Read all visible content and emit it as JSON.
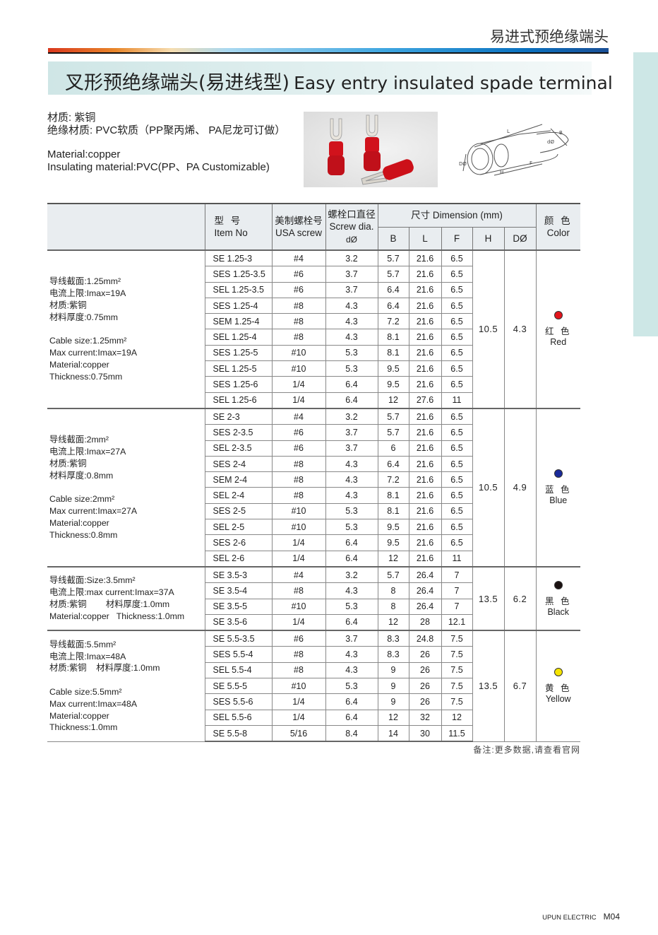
{
  "header": {
    "section_title": "易进式预绝缘端头",
    "title_cn": "叉形预绝缘端头(易进线型)",
    "title_en": "Easy entry insulated spade terminal"
  },
  "intro": {
    "cn_line1": "材质: 紫铜",
    "cn_line2": "绝缘材质: PVC软质（PP聚丙烯、 PA尼龙可订做）",
    "en_line1": "Material:copper",
    "en_line2": "Insulating material:PVC(PP、PA Customizable)"
  },
  "diagram_labels": [
    "L",
    "B",
    "F",
    "dØ",
    "DØ",
    "H"
  ],
  "table": {
    "headers": {
      "item_cn": "型  号",
      "item_en": "Item No",
      "usa_cn": "美制螺栓号",
      "usa_en": "USA screw",
      "dia_cn": "螺栓口直径",
      "dia_en": "Screw dia.",
      "dia_sym": "dØ",
      "dimension": "尺寸 Dimension   (mm)",
      "B": "B",
      "L": "L",
      "F": "F",
      "H": "H",
      "D": "DØ",
      "color_cn": "颜 色",
      "color_en": "Color"
    },
    "groups": [
      {
        "desc": [
          "导线截面:1.25mm²",
          "电流上限:Imax=19A",
          "材质:紫铜",
          "材料厚度:0.75mm",
          "",
          "Cable size:1.25mm²",
          "Max current:Imax=19A",
          "Material:copper",
          "Thickness:0.75mm"
        ],
        "H": "10.5",
        "D": "4.3",
        "color_cn": "红 色",
        "color_en": "Red",
        "color_hex": "#e3141c",
        "rows": [
          [
            "SE 1.25-3",
            "#4",
            "3.2",
            "5.7",
            "21.6",
            "6.5"
          ],
          [
            "SES 1.25-3.5",
            "#6",
            "3.7",
            "5.7",
            "21.6",
            "6.5"
          ],
          [
            "SEL 1.25-3.5",
            "#6",
            "3.7",
            "6.4",
            "21.6",
            "6.5"
          ],
          [
            "SES 1.25-4",
            "#8",
            "4.3",
            "6.4",
            "21.6",
            "6.5"
          ],
          [
            "SEM 1.25-4",
            "#8",
            "4.3",
            "7.2",
            "21.6",
            "6.5"
          ],
          [
            "SEL 1.25-4",
            "#8",
            "4.3",
            "8.1",
            "21.6",
            "6.5"
          ],
          [
            "SES 1.25-5",
            "#10",
            "5.3",
            "8.1",
            "21.6",
            "6.5"
          ],
          [
            "SEL 1.25-5",
            "#10",
            "5.3",
            "9.5",
            "21.6",
            "6.5"
          ],
          [
            "SES 1.25-6",
            "1/4",
            "6.4",
            "9.5",
            "21.6",
            "6.5"
          ],
          [
            "SEL 1.25-6",
            "1/4",
            "6.4",
            "12",
            "27.6",
            "11"
          ]
        ]
      },
      {
        "desc": [
          "导线截面:2mm²",
          "电流上限:Imax=27A",
          "材质:紫铜",
          "材料厚度:0.8mm",
          "",
          "Cable size:2mm²",
          "Max current:Imax=27A",
          "Material:copper",
          "Thickness:0.8mm"
        ],
        "H": "10.5",
        "D": "4.9",
        "color_cn": "蓝 色",
        "color_en": "Blue",
        "color_hex": "#1a2a9a",
        "rows": [
          [
            "SE 2-3",
            "#4",
            "3.2",
            "5.7",
            "21.6",
            "6.5"
          ],
          [
            "SES 2-3.5",
            "#6",
            "3.7",
            "5.7",
            "21.6",
            "6.5"
          ],
          [
            "SEL 2-3.5",
            "#6",
            "3.7",
            "6",
            "21.6",
            "6.5"
          ],
          [
            "SES 2-4",
            "#8",
            "4.3",
            "6.4",
            "21.6",
            "6.5"
          ],
          [
            "SEM 2-4",
            "#8",
            "4.3",
            "7.2",
            "21.6",
            "6.5"
          ],
          [
            "SEL 2-4",
            "#8",
            "4.3",
            "8.1",
            "21.6",
            "6.5"
          ],
          [
            "SES 2-5",
            "#10",
            "5.3",
            "8.1",
            "21.6",
            "6.5"
          ],
          [
            "SEL 2-5",
            "#10",
            "5.3",
            "9.5",
            "21.6",
            "6.5"
          ],
          [
            "SES 2-6",
            "1/4",
            "6.4",
            "9.5",
            "21.6",
            "6.5"
          ],
          [
            "SEL 2-6",
            "1/4",
            "6.4",
            "12",
            "21.6",
            "11"
          ]
        ]
      },
      {
        "desc": [
          "导线截面:Size:3.5mm²",
          "电流上限:max current:Imax=37A",
          "材质:紫铜        材料厚度:1.0mm",
          "Material:copper   Thickness:1.0mm"
        ],
        "H": "13.5",
        "D": "6.2",
        "color_cn": "黑 色",
        "color_en": "Black",
        "color_hex": "#1a1010",
        "rows": [
          [
            "SE 3.5-3",
            "#4",
            "3.2",
            "5.7",
            "26.4",
            "7"
          ],
          [
            "SE 3.5-4",
            "#8",
            "4.3",
            "8",
            "26.4",
            "7"
          ],
          [
            "SE 3.5-5",
            "#10",
            "5.3",
            "8",
            "26.4",
            "7"
          ],
          [
            "SE 3.5-6",
            "1/4",
            "6.4",
            "12",
            "28",
            "12.1"
          ]
        ]
      },
      {
        "desc": [
          "导线截面:5.5mm²",
          "电流上限:Imax=48A",
          "材质:紫铜    材料厚度:1.0mm",
          "",
          "Cable size:5.5mm²",
          "Max current:Imax=48A",
          "Material:copper",
          "Thickness:1.0mm"
        ],
        "H": "13.5",
        "D": "6.7",
        "color_cn": "黄 色",
        "color_en": "Yellow",
        "color_hex": "#f5e400",
        "rows": [
          [
            "SE 5.5-3.5",
            "#6",
            "3.7",
            "8.3",
            "24.8",
            "7.5"
          ],
          [
            "SES 5.5-4",
            "#8",
            "4.3",
            "8.3",
            "26",
            "7.5"
          ],
          [
            "SEL 5.5-4",
            "#8",
            "4.3",
            "9",
            "26",
            "7.5"
          ],
          [
            "SE 5.5-5",
            "#10",
            "5.3",
            "9",
            "26",
            "7.5"
          ],
          [
            "SES 5.5-6",
            "1/4",
            "6.4",
            "9",
            "26",
            "7.5"
          ],
          [
            "SEL 5.5-6",
            "1/4",
            "6.4",
            "12",
            "32",
            "12"
          ],
          [
            "SE 5.5-8",
            "5/16",
            "8.4",
            "14",
            "30",
            "11.5"
          ]
        ]
      }
    ]
  },
  "note": "备注:更多数据,请查看官网",
  "footer": {
    "brand": "UPUN ELECTRIC",
    "page": "M04"
  }
}
